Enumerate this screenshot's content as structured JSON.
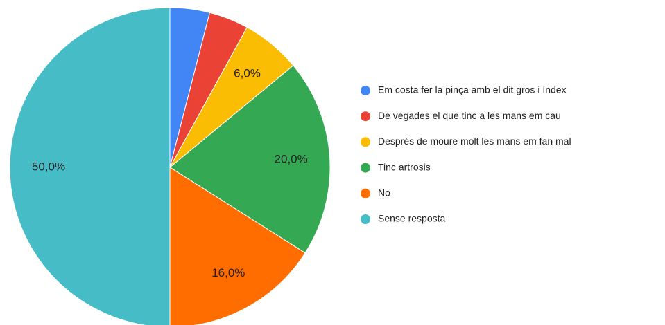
{
  "chart_data": {
    "type": "pie",
    "categories": [
      "Em costa fer la pinça amb el dit gros i índex",
      "De vegades el que tinc a les mans em cau",
      "Després de moure molt les mans em fan mal",
      "Tinc artrosis",
      "No",
      "Sense resposta"
    ],
    "values": [
      4,
      4,
      6,
      20,
      16,
      50
    ],
    "value_labels": [
      null,
      null,
      "6,0%",
      "20,0%",
      "16,0%",
      "50,0%"
    ],
    "colors": [
      "#4285f4",
      "#ea4335",
      "#fbbc04",
      "#34a853",
      "#ff6d01",
      "#46bdc6"
    ],
    "legend": "right"
  }
}
